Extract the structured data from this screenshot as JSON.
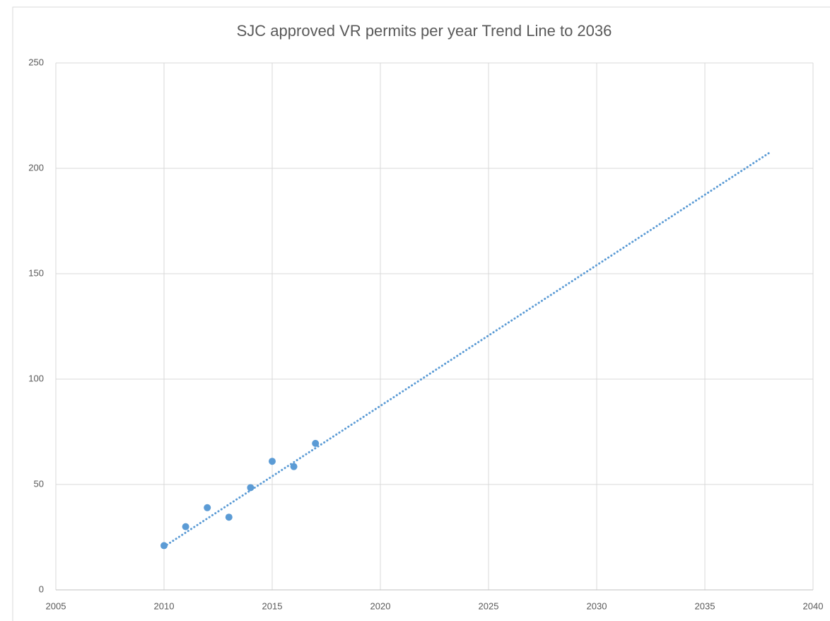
{
  "chart_data": {
    "type": "scatter",
    "title": "SJC approved VR permits per year Trend Line to 2036",
    "series": [
      {
        "color": "#5b9bd5",
        "x": [
          2010,
          2011,
          2012,
          2013,
          2014,
          2015,
          2016,
          2017
        ],
        "values": [
          21,
          30,
          39,
          34.5,
          48.5,
          61,
          58.5,
          69.5
        ]
      }
    ],
    "trendline": {
      "color": "#5b9bd5",
      "x": [
        2010,
        2038
      ],
      "values": [
        20.5,
        207.5
      ]
    },
    "xlim": [
      2005,
      2040
    ],
    "xticks": [
      2005,
      2010,
      2015,
      2020,
      2025,
      2030,
      2035,
      2040
    ],
    "ylim": [
      0,
      250
    ],
    "yticks": [
      0,
      50,
      100,
      150,
      200,
      250
    ],
    "grid": true
  }
}
